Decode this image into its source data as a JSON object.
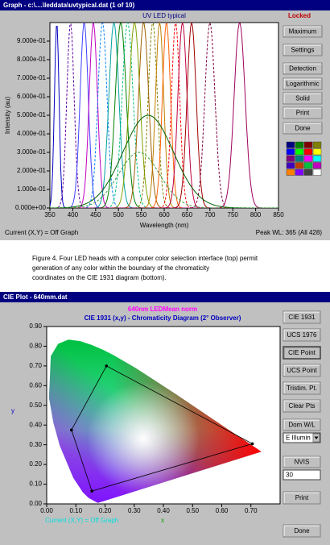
{
  "window1": {
    "title": "Graph - c:\\....\\leddata\\uvtypical.dat  (1 of 10)",
    "plot": {
      "title": "UV LED typical",
      "status_flag": "Locked",
      "xlabel": "Wavelength (nm)",
      "ylabel": "Intensity (au)",
      "xlim": [
        350,
        850
      ],
      "xticks": [
        350,
        400,
        450,
        500,
        550,
        600,
        650,
        700,
        750,
        800,
        850
      ],
      "ylim": [
        0,
        1
      ],
      "yticks": [
        {
          "value": 0,
          "label": "0.000e+00"
        },
        {
          "value": 0.1,
          "label": "1.000e-01"
        },
        {
          "value": 0.2,
          "label": "2.000e-01"
        },
        {
          "value": 0.3,
          "label": "3.000e-01"
        },
        {
          "value": 0.4,
          "label": "4.000e-01"
        },
        {
          "value": 0.5,
          "label": "5.000e-01"
        },
        {
          "value": 0.6,
          "label": "6.000e-01"
        },
        {
          "value": 0.7,
          "label": "7.000e-01"
        },
        {
          "value": 0.8,
          "label": "8.000e-01"
        },
        {
          "value": 0.9,
          "label": "9.000e-01"
        }
      ],
      "curves": [
        {
          "peak": 365,
          "width": 5,
          "height": 1,
          "color": "#0000c0"
        },
        {
          "peak": 395,
          "width": 8,
          "height": 1,
          "color": "#6000a0"
        },
        {
          "peak": 425,
          "width": 9,
          "height": 1,
          "color": "#4040ff"
        },
        {
          "peak": 445,
          "width": 9,
          "height": 1,
          "color": "#c000c0"
        },
        {
          "peak": 465,
          "width": 10,
          "height": 1,
          "color": "#0080ff"
        },
        {
          "peak": 490,
          "width": 11,
          "height": 1,
          "color": "#00a0a0"
        },
        {
          "peak": 505,
          "width": 12,
          "height": 1,
          "color": "#008000"
        },
        {
          "peak": 520,
          "width": 12,
          "height": 1,
          "color": "#00c080"
        },
        {
          "peak": 535,
          "width": 12,
          "height": 1,
          "color": "#80a000"
        },
        {
          "peak": 555,
          "width": 11,
          "height": 1,
          "color": "#a06000"
        },
        {
          "peak": 575,
          "width": 10,
          "height": 1,
          "color": "#808000"
        },
        {
          "peak": 590,
          "width": 9,
          "height": 1,
          "color": "#c08000"
        },
        {
          "peak": 605,
          "width": 9,
          "height": 1,
          "color": "#ff6000"
        },
        {
          "peak": 625,
          "width": 9,
          "height": 1,
          "color": "#ff0000"
        },
        {
          "peak": 640,
          "width": 10,
          "height": 1,
          "color": "#c00040"
        },
        {
          "peak": 660,
          "width": 10,
          "height": 1,
          "color": "#a00000"
        },
        {
          "peak": 700,
          "width": 11,
          "height": 1,
          "color": "#800040"
        },
        {
          "peak": 765,
          "width": 12,
          "height": 1,
          "color": "#a00060"
        },
        {
          "peak": 565,
          "width": 55,
          "height": 0.5,
          "color": "#006000"
        },
        {
          "peak": 545,
          "width": 45,
          "height": 0.3,
          "color": "#40a040"
        }
      ]
    },
    "buttons": [
      "Maximum",
      "Settings",
      "Detection",
      "Logarithmic",
      "Solid",
      "Print",
      "Done"
    ],
    "status_left": "Current (X,Y) = Off Graph",
    "status_right": "Peak WL:  365  (All 428)"
  },
  "caption": [
    "Figure 4. Four LED heads with a computer color selection interface (top) permit",
    "generation of any color within the boundary of the chromaticity",
    "coordinates on the CIE 1931 diagram (bottom)."
  ],
  "window2": {
    "title": "CIE Plot - 640mm.dat",
    "plot": {
      "subtitle": "640nm LEDMean norm",
      "title": "CIE 1931 (x,y) - Chromaticity Diagram (2° Observer)",
      "xlabel": "x",
      "ylabel": "y",
      "xlim": [
        0,
        0.8
      ],
      "xticks": [
        {
          "value": 0,
          "label": "0.00"
        },
        {
          "value": 0.1,
          "label": "0.10"
        },
        {
          "value": 0.2,
          "label": "0.20"
        },
        {
          "value": 0.3,
          "label": "0.30"
        },
        {
          "value": 0.4,
          "label": "0.40"
        },
        {
          "value": 0.5,
          "label": "0.50"
        },
        {
          "value": 0.6,
          "label": "0.60"
        },
        {
          "value": 0.7,
          "label": "0.70"
        }
      ],
      "ylim": [
        0,
        0.9
      ],
      "yticks": [
        {
          "value": 0,
          "label": "0.00"
        },
        {
          "value": 0.1,
          "label": "0.10"
        },
        {
          "value": 0.2,
          "label": "0.20"
        },
        {
          "value": 0.3,
          "label": "0.30"
        },
        {
          "value": 0.4,
          "label": "0.40"
        },
        {
          "value": 0.5,
          "label": "0.50"
        },
        {
          "value": 0.6,
          "label": "0.60"
        },
        {
          "value": 0.7,
          "label": "0.70"
        },
        {
          "value": 0.8,
          "label": "0.80"
        },
        {
          "value": 0.9,
          "label": "0.90"
        }
      ],
      "points": {
        "x": [
          0.085,
          0.205,
          0.705,
          0.155
        ],
        "y": [
          0.375,
          0.7,
          0.305,
          0.065
        ]
      }
    },
    "buttons": [
      "CIE 1931",
      "UCS 1976",
      "CIE Point",
      "UCS Point",
      "Tristim. Pt.",
      "Clear Pts"
    ],
    "dom_label": "Dom W/L",
    "dropdown": "E Illumin",
    "nvis_label": "NVIS",
    "nvis_value": "30",
    "print": "Print",
    "done": "Done",
    "status_left": "Current (X,Y) = Off Graph"
  }
}
